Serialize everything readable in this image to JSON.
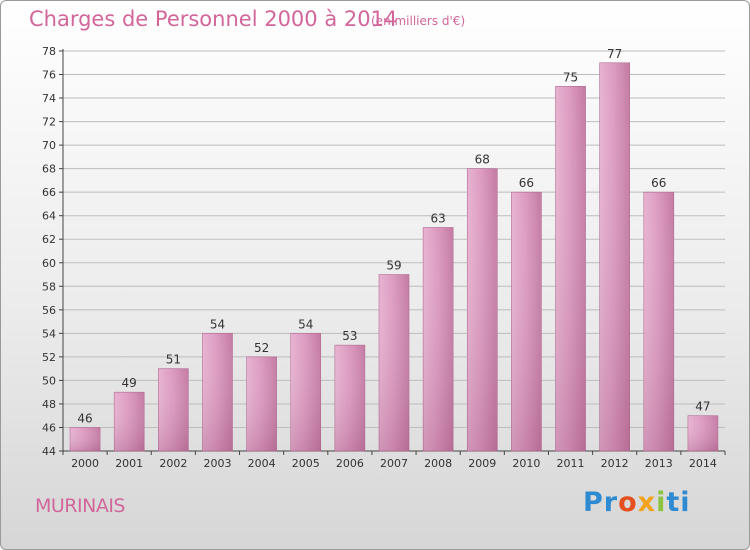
{
  "title": "Charges de Personnel 2000 à 2014",
  "subtitle": "(en milliers d'€)",
  "commune": "MURINAIS",
  "logo": {
    "p1": "Pr",
    "p2": "o",
    "p3": "x",
    "p4": "i",
    "p5": "ti"
  },
  "colors": {
    "bar": "#d88ab4",
    "bar_light": "#e5a8cb",
    "bar_dark": "#b56a93",
    "title": "#d2669a"
  },
  "chart_data": {
    "type": "bar",
    "title": "Charges de Personnel 2000 à 2014",
    "subtitle": "(en milliers d'€)",
    "categories": [
      "2000",
      "2001",
      "2002",
      "2003",
      "2004",
      "2005",
      "2006",
      "2007",
      "2008",
      "2009",
      "2010",
      "2011",
      "2012",
      "2013",
      "2014"
    ],
    "values": [
      46,
      49,
      51,
      54,
      52,
      54,
      53,
      59,
      63,
      68,
      66,
      75,
      77,
      66,
      47
    ],
    "ylim": [
      44,
      78
    ],
    "yticks": [
      44,
      46,
      48,
      50,
      52,
      54,
      56,
      58,
      60,
      62,
      64,
      66,
      68,
      70,
      72,
      74,
      76,
      78
    ],
    "grid": true,
    "legend": "none"
  }
}
